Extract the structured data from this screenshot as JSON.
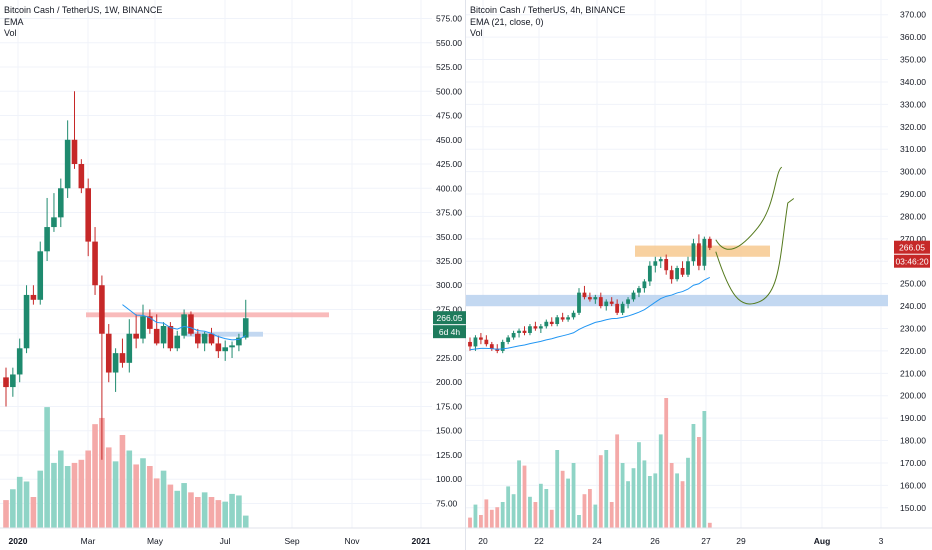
{
  "colors": {
    "up": "#26a69a",
    "down": "#ef5350",
    "up_body": "#1e8a6e",
    "down_body": "#c62828",
    "ema": "#2196f3",
    "vol_up": "#8fd4c6",
    "vol_down": "#f4a9a8",
    "grid": "#f0f3fa",
    "axis_text": "#131722",
    "tag_green": "#1e7b5c",
    "tag_red": "#c62828",
    "resistance_zone": "#f8b4b4",
    "support_zone": "#bcd4f0",
    "orange_zone": "#f7c98f",
    "projection": "#557a1e"
  },
  "left_chart": {
    "legend": {
      "title": "Bitcoin Cash / TetherUS, 1W, BINANCE",
      "ema": "EMA",
      "vol": "Vol"
    },
    "price_axis": [
      "575.00",
      "550.00",
      "525.00",
      "500.00",
      "475.00",
      "450.00",
      "425.00",
      "400.00",
      "375.00",
      "350.00",
      "325.00",
      "300.00",
      "275.00",
      "250.00",
      "225.00",
      "200.00",
      "175.00",
      "150.00",
      "125.00",
      "100.00",
      "75.00"
    ],
    "time_axis": [
      "2020",
      "Mar",
      "May",
      "Jul",
      "Sep",
      "Nov",
      "2021"
    ],
    "price_tag": {
      "value": "266.05",
      "countdown": "6d 4h"
    }
  },
  "right_chart": {
    "legend": {
      "title": "Bitcoin Cash / TetherUS, 4h, BINANCE",
      "ema": "EMA (21, close, 0)",
      "vol": "Vol"
    },
    "price_axis": [
      "370.00",
      "360.00",
      "350.00",
      "340.00",
      "330.00",
      "320.00",
      "310.00",
      "300.00",
      "290.00",
      "280.00",
      "270.00",
      "260.00",
      "250.00",
      "240.00",
      "230.00",
      "220.00",
      "210.00",
      "200.00",
      "190.00",
      "180.00",
      "170.00",
      "160.00",
      "150.00"
    ],
    "time_axis": [
      "20",
      "22",
      "24",
      "26",
      "27",
      "29",
      "Aug",
      "3"
    ],
    "price_tag": {
      "value": "266.05",
      "countdown": "03:46:20"
    }
  },
  "chart_data": [
    {
      "type": "candlestick",
      "title": "Bitcoin Cash / TetherUS, 1W, BINANCE",
      "y_axis_range": [
        60,
        590
      ],
      "x_axis_ticks": [
        "2020",
        "Mar",
        "May",
        "Jul",
        "Sep",
        "Nov",
        "2021"
      ],
      "indicators": [
        "EMA",
        "Vol"
      ],
      "last_price": 266.05,
      "candles": [
        {
          "o": 205,
          "h": 215,
          "l": 175,
          "c": 195
        },
        {
          "o": 195,
          "h": 215,
          "l": 185,
          "c": 208
        },
        {
          "o": 208,
          "h": 245,
          "l": 200,
          "c": 235
        },
        {
          "o": 235,
          "h": 300,
          "l": 230,
          "c": 290
        },
        {
          "o": 290,
          "h": 300,
          "l": 280,
          "c": 285
        },
        {
          "o": 285,
          "h": 345,
          "l": 280,
          "c": 335
        },
        {
          "o": 335,
          "h": 390,
          "l": 325,
          "c": 360
        },
        {
          "o": 360,
          "h": 395,
          "l": 355,
          "c": 370
        },
        {
          "o": 370,
          "h": 410,
          "l": 360,
          "c": 400
        },
        {
          "o": 400,
          "h": 470,
          "l": 390,
          "c": 450
        },
        {
          "o": 450,
          "h": 500,
          "l": 420,
          "c": 425
        },
        {
          "o": 425,
          "h": 430,
          "l": 395,
          "c": 400
        },
        {
          "o": 400,
          "h": 410,
          "l": 330,
          "c": 345
        },
        {
          "o": 345,
          "h": 360,
          "l": 290,
          "c": 300
        },
        {
          "o": 300,
          "h": 310,
          "l": 120,
          "c": 250
        },
        {
          "o": 250,
          "h": 260,
          "l": 200,
          "c": 210
        },
        {
          "o": 210,
          "h": 235,
          "l": 190,
          "c": 230
        },
        {
          "o": 230,
          "h": 245,
          "l": 215,
          "c": 220
        },
        {
          "o": 220,
          "h": 265,
          "l": 210,
          "c": 250
        },
        {
          "o": 250,
          "h": 270,
          "l": 235,
          "c": 245
        },
        {
          "o": 245,
          "h": 280,
          "l": 240,
          "c": 268
        },
        {
          "o": 268,
          "h": 275,
          "l": 250,
          "c": 255
        },
        {
          "o": 255,
          "h": 270,
          "l": 238,
          "c": 240
        },
        {
          "o": 240,
          "h": 262,
          "l": 235,
          "c": 258
        },
        {
          "o": 258,
          "h": 262,
          "l": 232,
          "c": 235
        },
        {
          "o": 235,
          "h": 253,
          "l": 232,
          "c": 248
        },
        {
          "o": 248,
          "h": 275,
          "l": 245,
          "c": 270
        },
        {
          "o": 270,
          "h": 273,
          "l": 248,
          "c": 250
        },
        {
          "o": 250,
          "h": 255,
          "l": 235,
          "c": 240
        },
        {
          "o": 240,
          "h": 252,
          "l": 232,
          "c": 250
        },
        {
          "o": 250,
          "h": 256,
          "l": 238,
          "c": 240
        },
        {
          "o": 240,
          "h": 248,
          "l": 225,
          "c": 232
        },
        {
          "o": 232,
          "h": 243,
          "l": 222,
          "c": 236
        },
        {
          "o": 236,
          "h": 242,
          "l": 225,
          "c": 238
        },
        {
          "o": 238,
          "h": 250,
          "l": 232,
          "c": 246
        },
        {
          "o": 246,
          "h": 285,
          "l": 244,
          "c": 266
        }
      ],
      "volume_relative": [
        0.18,
        0.25,
        0.33,
        0.3,
        0.2,
        0.37,
        0.78,
        0.42,
        0.5,
        0.4,
        0.42,
        0.44,
        0.5,
        0.67,
        0.71,
        0.52,
        0.43,
        0.6,
        0.5,
        0.41,
        0.45,
        0.4,
        0.32,
        0.37,
        0.28,
        0.24,
        0.29,
        0.23,
        0.2,
        0.23,
        0.2,
        0.18,
        0.17,
        0.22,
        0.21,
        0.08
      ],
      "zones": [
        {
          "name": "resistance",
          "y0": 267,
          "y1": 272
        },
        {
          "name": "support",
          "y0": 247,
          "y1": 252
        }
      ]
    },
    {
      "type": "candlestick",
      "title": "Bitcoin Cash / TetherUS, 4h, BINANCE",
      "y_axis_range": [
        145,
        373
      ],
      "x_axis_ticks": [
        "20",
        "22",
        "24",
        "26",
        "27",
        "29",
        "Aug",
        "3"
      ],
      "indicators": [
        "EMA (21, close, 0)",
        "Vol"
      ],
      "last_price": 266.05,
      "candles": [
        {
          "o": 224,
          "h": 226,
          "l": 220,
          "c": 222
        },
        {
          "o": 222,
          "h": 227,
          "l": 220,
          "c": 226
        },
        {
          "o": 226,
          "h": 228,
          "l": 223,
          "c": 225
        },
        {
          "o": 225,
          "h": 227,
          "l": 222,
          "c": 223
        },
        {
          "o": 223,
          "h": 224,
          "l": 220,
          "c": 221
        },
        {
          "o": 221,
          "h": 223,
          "l": 219,
          "c": 220
        },
        {
          "o": 220,
          "h": 225,
          "l": 219,
          "c": 224
        },
        {
          "o": 224,
          "h": 227,
          "l": 223,
          "c": 226
        },
        {
          "o": 226,
          "h": 229,
          "l": 225,
          "c": 228
        },
        {
          "o": 228,
          "h": 230,
          "l": 226,
          "c": 229
        },
        {
          "o": 229,
          "h": 231,
          "l": 227,
          "c": 228
        },
        {
          "o": 228,
          "h": 232,
          "l": 227,
          "c": 231
        },
        {
          "o": 231,
          "h": 233,
          "l": 229,
          "c": 230
        },
        {
          "o": 230,
          "h": 232,
          "l": 228,
          "c": 231
        },
        {
          "o": 231,
          "h": 234,
          "l": 230,
          "c": 233
        },
        {
          "o": 233,
          "h": 235,
          "l": 231,
          "c": 232
        },
        {
          "o": 232,
          "h": 236,
          "l": 231,
          "c": 235
        },
        {
          "o": 235,
          "h": 237,
          "l": 233,
          "c": 234
        },
        {
          "o": 234,
          "h": 236,
          "l": 233,
          "c": 235
        },
        {
          "o": 235,
          "h": 238,
          "l": 234,
          "c": 237
        },
        {
          "o": 237,
          "h": 248,
          "l": 236,
          "c": 246
        },
        {
          "o": 246,
          "h": 249,
          "l": 243,
          "c": 244
        },
        {
          "o": 244,
          "h": 246,
          "l": 242,
          "c": 243
        },
        {
          "o": 243,
          "h": 245,
          "l": 241,
          "c": 244
        },
        {
          "o": 244,
          "h": 246,
          "l": 239,
          "c": 240
        },
        {
          "o": 240,
          "h": 243,
          "l": 238,
          "c": 242
        },
        {
          "o": 242,
          "h": 244,
          "l": 240,
          "c": 241
        },
        {
          "o": 241,
          "h": 243,
          "l": 236,
          "c": 237
        },
        {
          "o": 237,
          "h": 242,
          "l": 236,
          "c": 241
        },
        {
          "o": 241,
          "h": 244,
          "l": 239,
          "c": 243
        },
        {
          "o": 243,
          "h": 247,
          "l": 242,
          "c": 246
        },
        {
          "o": 246,
          "h": 249,
          "l": 244,
          "c": 248
        },
        {
          "o": 248,
          "h": 252,
          "l": 246,
          "c": 251
        },
        {
          "o": 251,
          "h": 260,
          "l": 249,
          "c": 258
        },
        {
          "o": 258,
          "h": 262,
          "l": 255,
          "c": 260
        },
        {
          "o": 260,
          "h": 262,
          "l": 257,
          "c": 261
        },
        {
          "o": 261,
          "h": 263,
          "l": 254,
          "c": 256
        },
        {
          "o": 256,
          "h": 258,
          "l": 250,
          "c": 252
        },
        {
          "o": 252,
          "h": 258,
          "l": 251,
          "c": 257
        },
        {
          "o": 257,
          "h": 260,
          "l": 253,
          "c": 254
        },
        {
          "o": 254,
          "h": 262,
          "l": 253,
          "c": 260
        },
        {
          "o": 260,
          "h": 270,
          "l": 258,
          "c": 268
        },
        {
          "o": 268,
          "h": 272,
          "l": 256,
          "c": 258
        },
        {
          "o": 258,
          "h": 271,
          "l": 256,
          "c": 270
        },
        {
          "o": 270,
          "h": 271,
          "l": 265,
          "c": 266
        }
      ],
      "volume_relative": [
        0.08,
        0.18,
        0.1,
        0.22,
        0.14,
        0.16,
        0.2,
        0.32,
        0.26,
        0.52,
        0.48,
        0.24,
        0.2,
        0.34,
        0.3,
        0.14,
        0.6,
        0.44,
        0.38,
        0.5,
        0.1,
        0.26,
        0.3,
        0.18,
        0.56,
        0.6,
        0.2,
        0.72,
        0.5,
        0.36,
        0.46,
        0.66,
        0.52,
        0.4,
        0.42,
        0.72,
        1.0,
        0.5,
        0.42,
        0.36,
        0.54,
        0.8,
        0.7,
        0.9,
        0.04
      ],
      "zones": [
        {
          "name": "orange",
          "y0": 262,
          "y1": 267
        },
        {
          "name": "blue",
          "y0": 240,
          "y1": 245
        }
      ]
    }
  ]
}
